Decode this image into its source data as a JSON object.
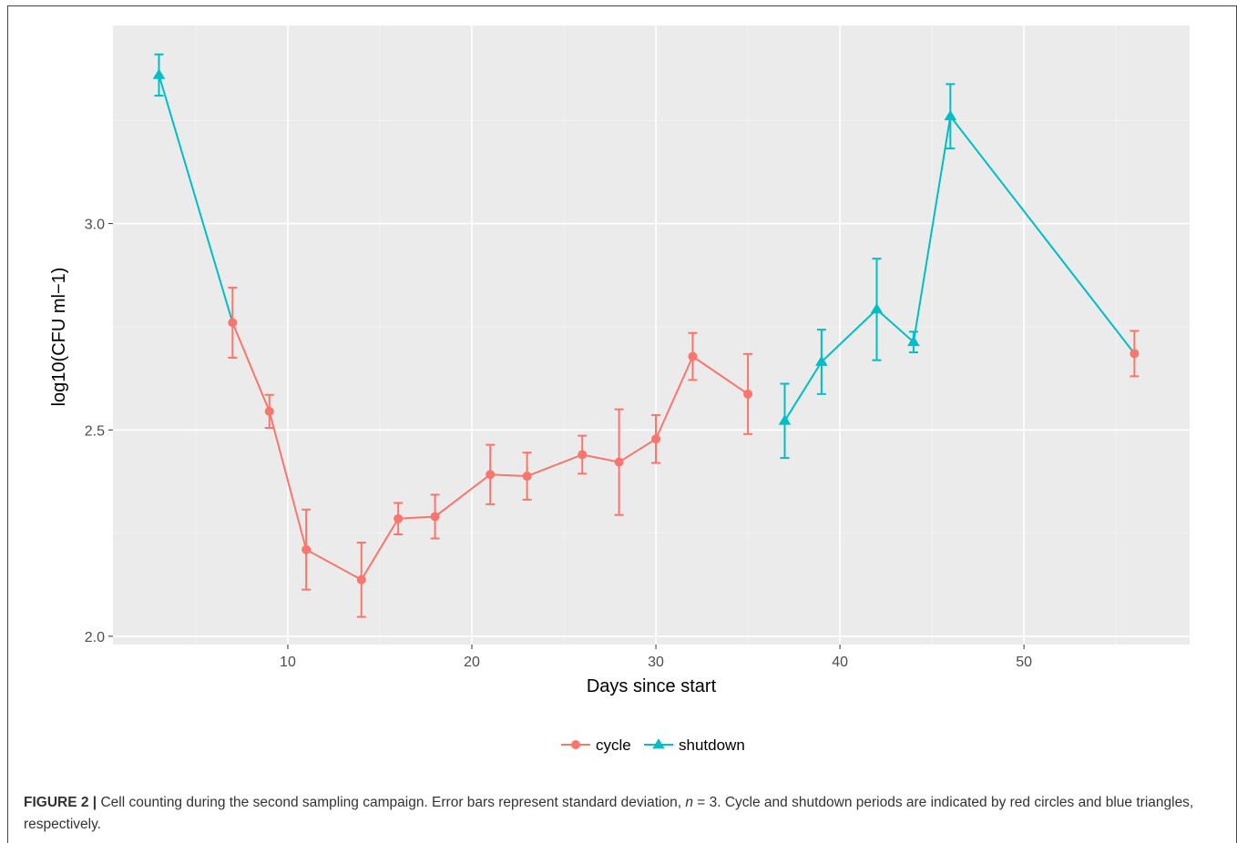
{
  "caption": {
    "label": "FIGURE 2 |",
    "text_part1": " Cell counting during the second sampling campaign. Error bars represent standard deviation, ",
    "n_symbol": "n",
    "text_part2": " = 3. Cycle and shutdown periods are indicated by red circles and blue triangles, respectively."
  },
  "chart_data": {
    "type": "line",
    "title": "",
    "xlabel": "Days since start",
    "ylabel": "log10(CFU ml−1)",
    "xlim": [
      0.5,
      59
    ],
    "ylim": [
      1.98,
      3.48
    ],
    "x_ticks": [
      10,
      20,
      30,
      40,
      50
    ],
    "y_ticks": [
      2.0,
      2.5,
      3.0
    ],
    "y_tick_labels": [
      "2.0",
      "2.5",
      "3.0"
    ],
    "grid": true,
    "legend_position": "bottom",
    "series": [
      {
        "name": "cycle",
        "color": "#F8766D",
        "marker": "circle",
        "points": [
          {
            "x": 7,
            "y": 2.76,
            "sd": 0.085
          },
          {
            "x": 9,
            "y": 2.545,
            "sd": 0.04
          },
          {
            "x": 11,
            "y": 2.21,
            "sd": 0.097
          },
          {
            "x": 14,
            "y": 2.137,
            "sd": 0.09
          },
          {
            "x": 16,
            "y": 2.285,
            "sd": 0.038
          },
          {
            "x": 18,
            "y": 2.29,
            "sd": 0.053
          },
          {
            "x": 21,
            "y": 2.392,
            "sd": 0.072
          },
          {
            "x": 23,
            "y": 2.388,
            "sd": 0.057
          },
          {
            "x": 26,
            "y": 2.44,
            "sd": 0.046
          },
          {
            "x": 28,
            "y": 2.422,
            "sd": 0.128
          },
          {
            "x": 30,
            "y": 2.478,
            "sd": 0.058
          },
          {
            "x": 32,
            "y": 2.678,
            "sd": 0.057
          },
          {
            "x": 35,
            "y": 2.587,
            "sd": 0.097
          },
          {
            "x": 56,
            "y": 2.685,
            "sd": 0.055
          }
        ],
        "segments": [
          [
            0,
            12
          ]
        ]
      },
      {
        "name": "shutdown",
        "color": "#00BFC4",
        "marker": "triangle",
        "points": [
          {
            "x": 3,
            "y": 3.36,
            "sd": 0.05
          },
          {
            "x": 7,
            "y": 2.76,
            "sd": 0
          },
          {
            "x": 37,
            "y": 2.522,
            "sd": 0.09
          },
          {
            "x": 39,
            "y": 2.665,
            "sd": 0.078
          },
          {
            "x": 42,
            "y": 2.792,
            "sd": 0.123
          },
          {
            "x": 44,
            "y": 2.713,
            "sd": 0.025
          },
          {
            "x": 46,
            "y": 3.26,
            "sd": 0.078
          },
          {
            "x": 56,
            "y": 2.685,
            "sd": 0
          }
        ],
        "marker_indices": [
          0,
          2,
          3,
          4,
          5,
          6
        ],
        "segments": [
          [
            0,
            1
          ],
          [
            2,
            7
          ]
        ]
      }
    ]
  }
}
